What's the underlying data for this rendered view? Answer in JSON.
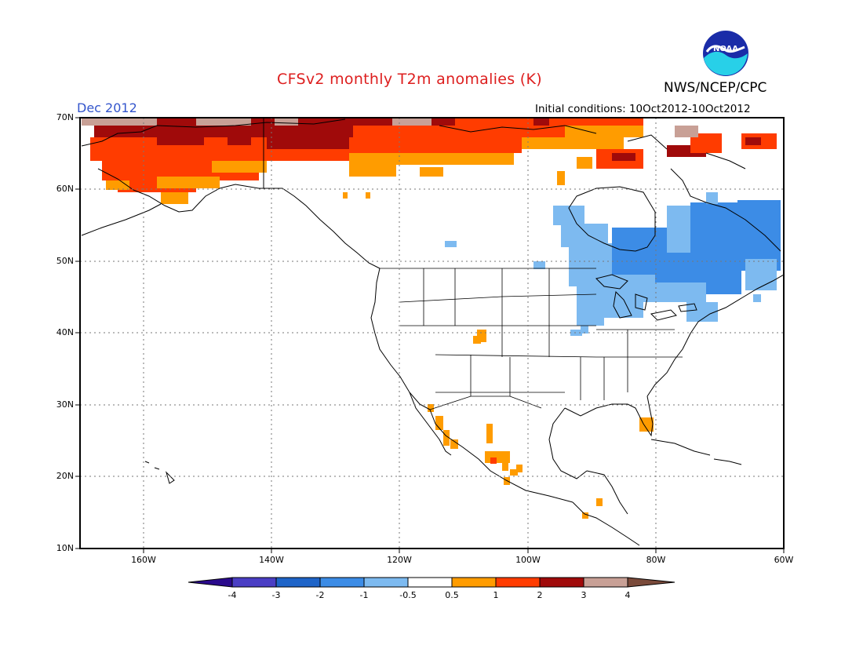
{
  "header": {
    "title": "CFSv2 monthly T2m anomalies (K)",
    "organization": "NWS/NCEP/CPC",
    "logo_text": "NOAA",
    "forecast_month": "Dec 2012",
    "initial_conditions": "Initial conditions: 10Oct2012-10Oct2012"
  },
  "map": {
    "region": "North America",
    "lat_range": [
      10,
      70
    ],
    "lon_range": [
      -170,
      -60
    ],
    "lat_labels": [
      "70N",
      "60N",
      "50N",
      "40N",
      "30N",
      "20N",
      "10N"
    ],
    "lon_labels": [
      "160W",
      "140W",
      "120W",
      "100W",
      "80W",
      "60W"
    ],
    "grid": "dotted"
  },
  "colorbar": {
    "labels": [
      "-4",
      "-3",
      "-2",
      "-1",
      "-0.5",
      "0.5",
      "1",
      "2",
      "3",
      "4"
    ],
    "colors": [
      "#2a0a8c",
      "#4a3ec4",
      "#1e64c8",
      "#3c8ce6",
      "#7dbaf0",
      "#ffffff",
      "#ff9c00",
      "#ff3c00",
      "#a00a0a",
      "#c8a096",
      "#7a4a3a"
    ]
  },
  "anomaly_regions": [
    {
      "name": "Alaska / northern Canada warm",
      "level": "1 to 3"
    },
    {
      "name": "Arctic coast very warm",
      "level": "3 to 4"
    },
    {
      "name": "Eastern Canada / Great Lakes cool",
      "level": "-2 to -0.5"
    }
  ]
}
